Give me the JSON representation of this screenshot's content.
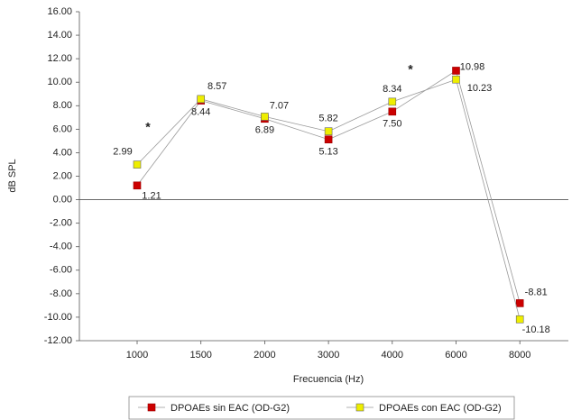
{
  "chart_data": {
    "type": "line",
    "xlabel": "Frecuencia (Hz)",
    "ylabel": "dB SPL",
    "categories": [
      "1000",
      "1500",
      "2000",
      "3000",
      "4000",
      "6000",
      "8000"
    ],
    "series": [
      {
        "name": "DPOAEs sin EAC (OD-G2)",
        "color": "#cc0000",
        "values": [
          1.21,
          8.44,
          6.89,
          5.13,
          7.5,
          10.98,
          -8.81
        ],
        "value_labels": [
          "1.21",
          "8.44",
          "6.89",
          "5.13",
          "7.50",
          "10.98",
          "-8.81"
        ]
      },
      {
        "name": "DPOAEs con EAC (OD-G2)",
        "color": "#eeee00",
        "values": [
          2.99,
          8.57,
          7.07,
          5.82,
          8.34,
          10.23,
          -10.18
        ],
        "value_labels": [
          "2.99",
          "8.57",
          "7.07",
          "5.82",
          "8.34",
          "10.23",
          "-10.18"
        ]
      }
    ],
    "ylim": [
      -12,
      16
    ],
    "yticks": [
      {
        "value": -12,
        "label": "-12.00"
      },
      {
        "value": -10,
        "label": "-10.00"
      },
      {
        "value": -8,
        "label": "-8.00"
      },
      {
        "value": -6,
        "label": "-6.00"
      },
      {
        "value": -4,
        "label": "-4.00"
      },
      {
        "value": -2,
        "label": "-2.00"
      },
      {
        "value": 0,
        "label": "0.00"
      },
      {
        "value": 2,
        "label": "2.00"
      },
      {
        "value": 4,
        "label": "4.00"
      },
      {
        "value": 6,
        "label": "6.00"
      },
      {
        "value": 8,
        "label": "8.00"
      },
      {
        "value": 10,
        "label": "10.00"
      },
      {
        "value": 12,
        "label": "12.00"
      },
      {
        "value": 14,
        "label": "14.00"
      },
      {
        "value": 16,
        "label": "16.00"
      }
    ],
    "annotations": [
      "*",
      "*"
    ],
    "legend": "bottom"
  }
}
